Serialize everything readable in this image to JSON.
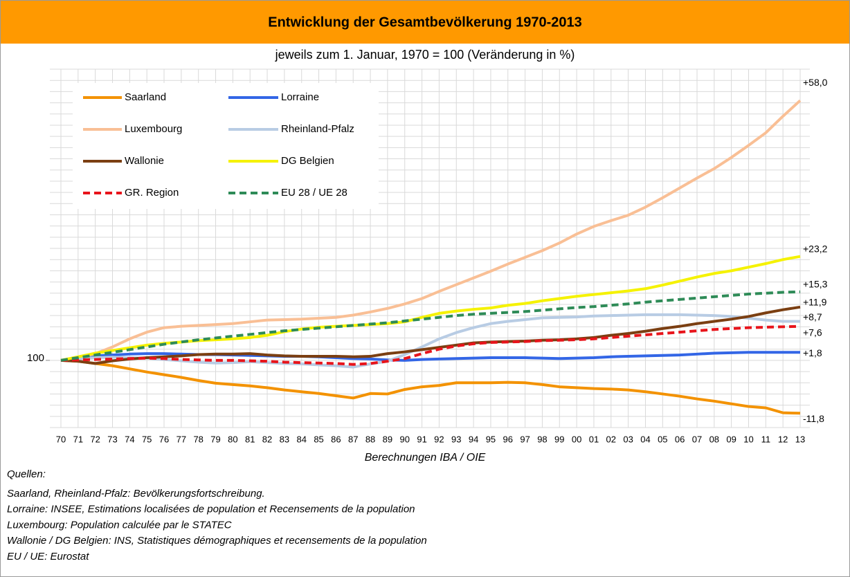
{
  "chart_data": {
    "type": "line",
    "title": "Entwicklung der Gesamtbevölkerung 1970-2013",
    "subtitle": "jeweils zum 1. Januar, 1970 = 100 (Veränderung in %)",
    "xlabel": "Berechnungen IBA / OIE",
    "categories": [
      "70",
      "71",
      "72",
      "73",
      "74",
      "75",
      "76",
      "77",
      "78",
      "79",
      "80",
      "81",
      "82",
      "83",
      "84",
      "85",
      "86",
      "87",
      "88",
      "89",
      "90",
      "91",
      "92",
      "93",
      "94",
      "95",
      "96",
      "97",
      "98",
      "99",
      "00",
      "01",
      "02",
      "03",
      "04",
      "05",
      "06",
      "07",
      "08",
      "09",
      "10",
      "11",
      "12",
      "13"
    ],
    "ylim": [
      85,
      165
    ],
    "yticks": [
      100
    ],
    "ygrid": [
      85,
      87.5,
      90,
      92.5,
      95,
      97.5,
      100,
      102.5,
      105,
      107.5,
      110,
      112.5,
      115,
      117.5,
      120,
      122.5,
      125,
      127.5,
      130,
      132.5,
      135,
      137.5,
      140,
      142.5,
      145,
      147.5,
      150,
      152.5,
      155,
      157.5,
      160,
      162.5,
      165
    ],
    "grid": true,
    "legend": "upper left",
    "series": [
      {
        "name": "Saarland",
        "color": "#f39200",
        "dashed": false,
        "end_label": "-11,8",
        "values": [
          100,
          99.8,
          99.3,
          98.8,
          98.1,
          97.4,
          96.8,
          96.2,
          95.5,
          94.9,
          94.6,
          94.3,
          93.9,
          93.4,
          93.0,
          92.6,
          92.1,
          91.6,
          92.6,
          92.5,
          93.5,
          94.1,
          94.4,
          95.0,
          95.0,
          95.0,
          95.1,
          95.0,
          94.6,
          94.1,
          93.9,
          93.7,
          93.6,
          93.4,
          93.0,
          92.5,
          92.0,
          91.4,
          90.9,
          90.3,
          89.7,
          89.4,
          88.3,
          88.2
        ]
      },
      {
        "name": "Lorraine",
        "color": "#3366e6",
        "dashed": false,
        "end_label": "+1,8",
        "values": [
          100,
          100.6,
          101.0,
          101.2,
          101.4,
          101.5,
          101.5,
          101.4,
          101.3,
          101.3,
          101.2,
          101.1,
          101.0,
          100.9,
          100.9,
          100.8,
          100.6,
          100.4,
          100.3,
          100.1,
          100.0,
          100.2,
          100.3,
          100.4,
          100.5,
          100.6,
          100.6,
          100.6,
          100.5,
          100.4,
          100.5,
          100.6,
          100.8,
          100.9,
          101.0,
          101.1,
          101.2,
          101.4,
          101.6,
          101.7,
          101.8,
          101.8,
          101.8,
          101.8
        ]
      },
      {
        "name": "Luxembourg",
        "color": "#f9bf95",
        "dashed": false,
        "end_label": "+58,0",
        "values": [
          100,
          100.5,
          101.5,
          103.0,
          104.8,
          106.3,
          107.3,
          107.6,
          107.8,
          108.0,
          108.2,
          108.6,
          109.0,
          109.1,
          109.2,
          109.4,
          109.6,
          110.1,
          110.8,
          111.6,
          112.6,
          113.8,
          115.4,
          116.9,
          118.4,
          119.9,
          121.5,
          123.0,
          124.5,
          126.2,
          128.2,
          129.9,
          131.2,
          132.4,
          134.2,
          136.3,
          138.5,
          140.7,
          142.8,
          145.3,
          148.0,
          150.8,
          154.5,
          158.0
        ]
      },
      {
        "name": "Rheinland-Pfalz",
        "color": "#b8cce4",
        "dashed": false,
        "end_label": "+8,7",
        "values": [
          100,
          100.3,
          100.6,
          100.7,
          100.6,
          100.5,
          100.2,
          99.9,
          99.6,
          99.4,
          99.5,
          99.7,
          99.5,
          99.3,
          99.2,
          99.0,
          98.8,
          98.5,
          99.2,
          99.8,
          101.3,
          103.0,
          104.8,
          106.2,
          107.3,
          108.2,
          108.7,
          109.1,
          109.5,
          109.6,
          109.7,
          109.9,
          110.0,
          110.1,
          110.2,
          110.2,
          110.2,
          110.1,
          110.0,
          109.8,
          109.4,
          109.0,
          108.7,
          108.7
        ]
      },
      {
        "name": "Wallonie",
        "color": "#7b3f12",
        "dashed": false,
        "end_label": "+11,9",
        "values": [
          100,
          99.8,
          99.3,
          99.9,
          100.3,
          100.6,
          100.8,
          101.0,
          101.3,
          101.4,
          101.4,
          101.5,
          101.2,
          101.0,
          100.9,
          100.9,
          100.9,
          100.8,
          100.9,
          101.5,
          101.9,
          102.4,
          102.9,
          103.4,
          103.9,
          104.1,
          104.2,
          104.3,
          104.5,
          104.6,
          104.8,
          105.1,
          105.6,
          106.0,
          106.5,
          107.1,
          107.6,
          108.2,
          108.7,
          109.2,
          109.8,
          110.6,
          111.3,
          111.9
        ]
      },
      {
        "name": "DG Belgien",
        "color": "#f5f200",
        "dashed": false,
        "end_label": "+23,2",
        "values": [
          100,
          100.8,
          101.6,
          102.2,
          102.8,
          103.4,
          103.8,
          104.1,
          104.4,
          104.6,
          104.8,
          105.1,
          105.6,
          106.4,
          107.0,
          107.4,
          107.6,
          107.8,
          108.0,
          108.2,
          108.6,
          109.6,
          110.5,
          111.0,
          111.4,
          111.7,
          112.3,
          112.7,
          113.3,
          113.8,
          114.3,
          114.7,
          115.1,
          115.5,
          116.0,
          116.8,
          117.7,
          118.6,
          119.4,
          120.0,
          120.8,
          121.6,
          122.5,
          123.2
        ]
      },
      {
        "name": "GR. Region",
        "color": "#e8141b",
        "dashed": true,
        "end_label": "+7,6",
        "values": [
          100,
          100.1,
          100.2,
          100.3,
          100.4,
          100.5,
          100.4,
          100.2,
          100.1,
          100.0,
          100.0,
          99.9,
          99.8,
          99.6,
          99.5,
          99.4,
          99.3,
          99.1,
          99.3,
          99.8,
          100.4,
          101.5,
          102.5,
          103.2,
          103.7,
          104.0,
          104.1,
          104.2,
          104.4,
          104.5,
          104.6,
          104.8,
          105.1,
          105.4,
          105.7,
          106.0,
          106.3,
          106.6,
          106.9,
          107.1,
          107.3,
          107.4,
          107.5,
          107.6
        ]
      },
      {
        "name": "EU 28  / UE 28",
        "color": "#2e8b57",
        "dashed": true,
        "end_label": "+15,3",
        "values": [
          100,
          100.6,
          101.2,
          101.8,
          102.4,
          103.0,
          103.6,
          104.1,
          104.6,
          105.0,
          105.4,
          105.8,
          106.2,
          106.6,
          106.9,
          107.2,
          107.5,
          107.8,
          108.1,
          108.4,
          108.8,
          109.2,
          109.6,
          110.0,
          110.3,
          110.5,
          110.7,
          110.9,
          111.2,
          111.5,
          111.8,
          112.0,
          112.3,
          112.6,
          113.0,
          113.3,
          113.6,
          113.9,
          114.2,
          114.5,
          114.8,
          115.0,
          115.2,
          115.3
        ]
      }
    ]
  },
  "sources": {
    "heading": "Quellen:",
    "lines": [
      "Saarland, Rheinland-Pfalz: Bevölkerungsfortschreibung.",
      "Lorraine: INSEE, Estimations localisées de population et Recensements de la population",
      "Luxembourg: Population calculée par le STATEC",
      "Wallonie / DG Belgien: INS, Statistiques démographiques et recensements de la population",
      "EU / UE: Eurostat"
    ]
  }
}
